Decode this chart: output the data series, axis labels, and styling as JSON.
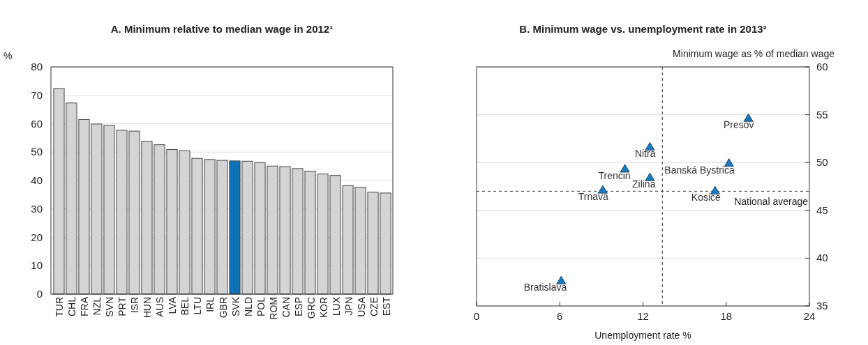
{
  "chart_data": [
    {
      "type": "bar",
      "title": "A. Minimum relative to median wage in 2012¹",
      "ylabel": "%",
      "categories": [
        "TUR",
        "CHL",
        "FRA",
        "NZL",
        "SVN",
        "PRT",
        "ISR",
        "HUN",
        "AUS",
        "LVA",
        "BEL",
        "LTU",
        "IRL",
        "GBR",
        "SVK",
        "NLD",
        "POL",
        "ROM",
        "CAN",
        "ESP",
        "GRC",
        "KOR",
        "LUX",
        "JPN",
        "USA",
        "CZE",
        "EST"
      ],
      "values": [
        72.4,
        67.3,
        61.5,
        59.9,
        59.4,
        57.7,
        57.4,
        53.8,
        52.6,
        50.9,
        50.5,
        47.8,
        47.4,
        47.1,
        46.9,
        46.8,
        46.3,
        45.1,
        44.9,
        44.2,
        43.3,
        42.3,
        41.8,
        38.2,
        37.6,
        35.9,
        35.6
      ],
      "colors": [
        "#d4d4d6",
        "#d4d4d6",
        "#d4d4d6",
        "#d4d4d6",
        "#d4d4d6",
        "#d4d4d6",
        "#d4d4d6",
        "#d4d4d6",
        "#d4d4d6",
        "#d4d4d6",
        "#d4d4d6",
        "#d4d4d6",
        "#d4d4d6",
        "#d4d4d6",
        "#0b72b9",
        "#d4d4d6",
        "#d4d4d6",
        "#d4d4d6",
        "#d4d4d6",
        "#d4d4d6",
        "#d4d4d6",
        "#d4d4d6",
        "#d4d4d6",
        "#d4d4d6",
        "#d4d4d6",
        "#d4d4d6",
        "#d4d4d6"
      ],
      "ylim": [
        0,
        80
      ],
      "yticks": [
        0,
        10,
        20,
        30,
        40,
        50,
        60,
        70,
        80
      ],
      "grid": "y"
    },
    {
      "type": "scatter",
      "title": "B. Minimum wage vs. unemployment rate in 2013²",
      "xlabel": "Unemployment rate %",
      "ylabel": "Minimum wage as % of median wage",
      "marker": "triangle",
      "series": [
        {
          "color": "#1a7abf",
          "x": [
            19.6,
            12.5,
            10.7,
            12.5,
            9.1,
            18.2,
            17.2,
            6.1
          ],
          "values": [
            54.6,
            51.6,
            49.3,
            48.4,
            47.1,
            49.9,
            47.0,
            37.6
          ]
        }
      ],
      "xlim": [
        0,
        24
      ],
      "xticks": [
        0,
        6,
        12,
        18,
        24
      ],
      "ylim": [
        35,
        60
      ],
      "yticks": [
        35,
        40,
        45,
        50,
        55,
        60
      ],
      "grid": "y",
      "ref_lines": [
        {
          "axis": "y",
          "value": 47.0,
          "label": "National average",
          "line_style": "dashed"
        },
        {
          "axis": "x",
          "value": 13.4,
          "line_style": "dashed"
        }
      ],
      "annotations": [
        {
          "text": "Presov",
          "x": 19.6,
          "y": 54.6
        },
        {
          "text": "Nitra",
          "x": 12.5,
          "y": 51.6
        },
        {
          "text": "Trencin",
          "x": 10.7,
          "y": 49.3
        },
        {
          "text": "Zilina",
          "x": 12.5,
          "y": 48.4
        },
        {
          "text": "Trnava",
          "x": 9.1,
          "y": 47.1
        },
        {
          "text": "Banská Bystrica",
          "x": 18.2,
          "y": 49.9
        },
        {
          "text": "Kosice",
          "x": 17.2,
          "y": 47.0
        },
        {
          "text": "Bratislava",
          "x": 6.1,
          "y": 37.6
        }
      ]
    }
  ]
}
